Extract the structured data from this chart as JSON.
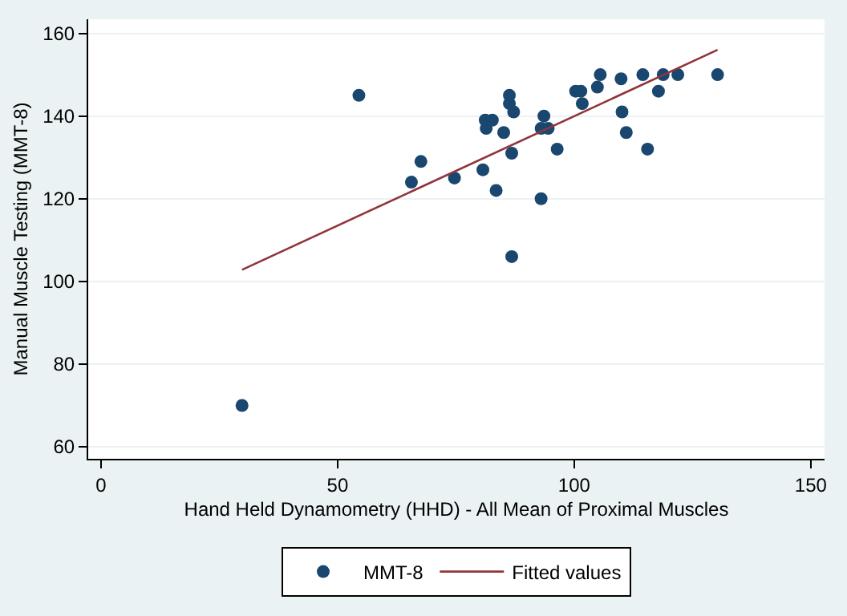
{
  "chart_data": {
    "type": "scatter",
    "xlabel": "Hand Held Dynamometry (HHD) - All Mean of Proximal Muscles",
    "ylabel": "Manual Muscle Testing (MMT-8)",
    "xlim": [
      -2.7,
      152.9
    ],
    "ylim": [
      57.1,
      163.4
    ],
    "xticks": [
      0,
      50,
      100,
      150
    ],
    "yticks": [
      60,
      80,
      100,
      120,
      140,
      160
    ],
    "grid": "y",
    "legend": "bottom",
    "marker": "circle",
    "series": [
      {
        "name": "MMT-8",
        "color": "#1a476f",
        "x": [
          54.5,
          67.6,
          65.6,
          74.7,
          29.8,
          80.7,
          83.5,
          86.8,
          81.2,
          81.4,
          82.7,
          85.1,
          86.3,
          86.3,
          87.2,
          86.8,
          93.0,
          93.6,
          93.0,
          94.5,
          96.4,
          100.3,
          101.4,
          101.7,
          104.9,
          105.5,
          109.9,
          110.1,
          111.0,
          115.5,
          114.5,
          117.8,
          118.8,
          121.9,
          130.3
        ],
        "values": [
          145,
          129,
          124,
          125,
          70,
          127,
          122,
          106,
          139,
          137,
          139,
          136,
          145,
          143,
          141,
          131,
          120,
          140,
          137,
          137,
          132,
          146,
          146,
          143,
          147,
          150,
          149,
          141,
          136,
          132,
          150,
          146,
          150,
          150,
          150
        ]
      },
      {
        "name": "Fitted values",
        "type": "line",
        "marker": "none",
        "line_style": "solid",
        "color": "#90353b",
        "x": [
          29.8,
          130.3
        ],
        "values": [
          102.8,
          156.0
        ]
      }
    ]
  }
}
